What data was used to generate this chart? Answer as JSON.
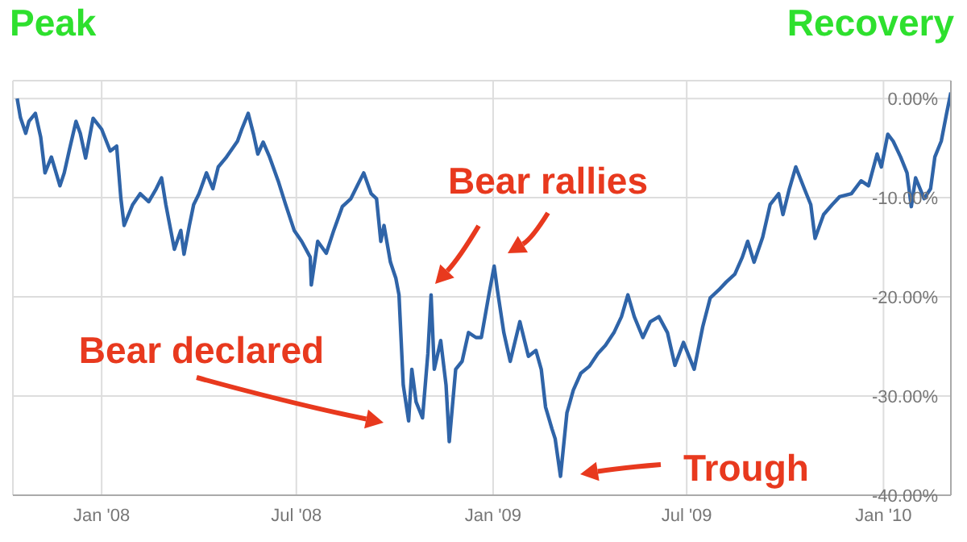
{
  "chart_data": {
    "type": "line",
    "annotations": [
      "Peak",
      "Recovery",
      "Bear rallies",
      "Bear declared",
      "Trough"
    ],
    "x": [
      "2007-10-14",
      "2007-10-17",
      "2007-10-22",
      "2007-10-25",
      "2007-10-31",
      "2007-11-05",
      "2007-11-09",
      "2007-11-15",
      "2007-11-23",
      "2007-11-27",
      "2007-12-02",
      "2007-12-08",
      "2007-12-12",
      "2007-12-17",
      "2007-12-24",
      "2008-01-01",
      "2008-01-09",
      "2008-01-15",
      "2008-01-19",
      "2008-01-22",
      "2008-01-30",
      "2008-02-06",
      "2008-02-14",
      "2008-02-21",
      "2008-02-26",
      "2008-03-01",
      "2008-03-09",
      "2008-03-15",
      "2008-03-18",
      "2008-03-23",
      "2008-03-27",
      "2008-04-01",
      "2008-04-08",
      "2008-04-14",
      "2008-04-19",
      "2008-04-26",
      "2008-05-07",
      "2008-05-11",
      "2008-05-17",
      "2008-05-22",
      "2008-05-26",
      "2008-05-31",
      "2008-06-06",
      "2008-06-14",
      "2008-06-21",
      "2008-06-29",
      "2008-07-06",
      "2008-07-14",
      "2008-07-15",
      "2008-07-21",
      "2008-07-29",
      "2008-08-05",
      "2008-08-13",
      "2008-08-21",
      "2008-08-27",
      "2008-09-02",
      "2008-09-09",
      "2008-09-14",
      "2008-09-18",
      "2008-09-21",
      "2008-09-27",
      "2008-10-02",
      "2008-10-05",
      "2008-10-09",
      "2008-10-14",
      "2008-10-17",
      "2008-10-21",
      "2008-10-27",
      "2008-11-01",
      "2008-11-04",
      "2008-11-07",
      "2008-11-13",
      "2008-11-18",
      "2008-11-21",
      "2008-11-27",
      "2008-12-03",
      "2008-12-09",
      "2008-12-16",
      "2008-12-21",
      "2008-12-28",
      "2009-01-02",
      "2009-01-05",
      "2009-01-11",
      "2009-01-17",
      "2009-01-26",
      "2009-02-03",
      "2009-02-10",
      "2009-02-15",
      "2009-02-19",
      "2009-02-25",
      "2009-02-28",
      "2009-03-05",
      "2009-03-11",
      "2009-03-17",
      "2009-03-24",
      "2009-04-01",
      "2009-04-09",
      "2009-04-16",
      "2009-04-24",
      "2009-05-01",
      "2009-05-07",
      "2009-05-13",
      "2009-05-21",
      "2009-05-28",
      "2009-06-05",
      "2009-06-13",
      "2009-06-20",
      "2009-06-28",
      "2009-07-08",
      "2009-07-16",
      "2009-07-23",
      "2009-07-31",
      "2009-08-07",
      "2009-08-15",
      "2009-08-22",
      "2009-08-27",
      "2009-09-02",
      "2009-09-10",
      "2009-09-17",
      "2009-09-25",
      "2009-09-29",
      "2009-10-05",
      "2009-10-11",
      "2009-10-19",
      "2009-10-25",
      "2009-10-29",
      "2009-11-06",
      "2009-11-14",
      "2009-11-21",
      "2009-12-02",
      "2009-12-11",
      "2009-12-18",
      "2009-12-26",
      "2009-12-30",
      "2010-01-05",
      "2010-01-10",
      "2010-01-17",
      "2010-01-23",
      "2010-01-27",
      "2010-01-31",
      "2010-02-08",
      "2010-02-14",
      "2010-02-18",
      "2010-02-24",
      "2010-03-01",
      "2010-03-05"
    ],
    "series": [
      {
        "color": "#2f64a8",
        "values": [
          0,
          -1.9,
          -3.5,
          -2.3,
          -1.5,
          -3.9,
          -7.5,
          -5.9,
          -8.8,
          -7.5,
          -5.1,
          -2.3,
          -3.5,
          -6.0,
          -2.0,
          -3.1,
          -5.3,
          -4.8,
          -10.1,
          -12.8,
          -10.7,
          -9.6,
          -10.4,
          -9.1,
          -8.0,
          -10.7,
          -15.2,
          -13.3,
          -15.7,
          -12.8,
          -10.7,
          -9.6,
          -7.5,
          -9.1,
          -6.9,
          -6.0,
          -4.3,
          -3.1,
          -1.5,
          -3.6,
          -5.6,
          -4.4,
          -5.9,
          -8.3,
          -10.7,
          -13.3,
          -14.4,
          -16.0,
          -18.8,
          -14.4,
          -15.6,
          -13.3,
          -10.9,
          -10.1,
          -8.8,
          -7.5,
          -9.6,
          -10.1,
          -14.4,
          -12.8,
          -16.5,
          -18.1,
          -19.8,
          -28.9,
          -32.5,
          -27.3,
          -30.6,
          -32.2,
          -25.7,
          -19.8,
          -27.3,
          -24.4,
          -28.9,
          -34.6,
          -27.3,
          -26.5,
          -23.6,
          -24.1,
          -24.1,
          -19.8,
          -16.9,
          -19.3,
          -23.6,
          -26.5,
          -22.5,
          -26.0,
          -25.4,
          -27.3,
          -31.1,
          -33.3,
          -34.3,
          -38.1,
          -31.7,
          -29.4,
          -27.7,
          -27.0,
          -25.7,
          -24.9,
          -23.6,
          -22.0,
          -19.8,
          -22.0,
          -24.1,
          -22.5,
          -22.0,
          -23.6,
          -26.9,
          -24.6,
          -27.3,
          -23.0,
          -20.1,
          -19.3,
          -18.5,
          -17.7,
          -16.0,
          -14.4,
          -16.5,
          -14.0,
          -10.7,
          -9.6,
          -11.7,
          -9.1,
          -6.9,
          -9.1,
          -10.7,
          -14.1,
          -11.7,
          -10.7,
          -9.9,
          -9.6,
          -8.3,
          -8.8,
          -5.6,
          -6.9,
          -3.6,
          -4.3,
          -5.9,
          -7.5,
          -10.9,
          -8.0,
          -10.1,
          -9.1,
          -5.9,
          -4.3,
          -1.5,
          0.6
        ]
      }
    ],
    "xlim": [
      "2007-10-10",
      "2010-03-05"
    ],
    "xticks": [
      {
        "value": "2008-01-01",
        "label": "Jan '08"
      },
      {
        "value": "2008-07-01",
        "label": "Jul '08"
      },
      {
        "value": "2009-01-01",
        "label": "Jan '09"
      },
      {
        "value": "2009-07-01",
        "label": "Jul '09"
      },
      {
        "value": "2010-01-01",
        "label": "Jan '10"
      }
    ],
    "ylim": [
      -40,
      1.8
    ],
    "yticks": [
      {
        "value": 0,
        "label": "0.00%"
      },
      {
        "value": -10,
        "label": "-10.00%"
      },
      {
        "value": -20,
        "label": "-20.00%"
      },
      {
        "value": -30,
        "label": "-30.00%"
      },
      {
        "value": -40,
        "label": "-40.00%"
      }
    ],
    "grid": true,
    "line_style": "solid"
  }
}
